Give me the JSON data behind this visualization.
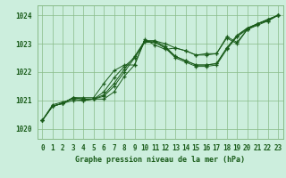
{
  "background_color": "#cceedd",
  "grid_color": "#88bb88",
  "line_color": "#1a5c1a",
  "title": "Graphe pression niveau de la mer (hPa)",
  "ylabel_vals": [
    1020,
    1021,
    1022,
    1023,
    1024
  ],
  "xlim": [
    -0.5,
    23.5
  ],
  "ylim": [
    1019.65,
    1024.35
  ],
  "hours": [
    0,
    1,
    2,
    3,
    4,
    5,
    6,
    7,
    8,
    9,
    10,
    11,
    12,
    13,
    14,
    15,
    16,
    17,
    18,
    19,
    20,
    21,
    22,
    23
  ],
  "line1": [
    1020.3,
    1020.8,
    1020.9,
    1021.0,
    1021.0,
    1021.05,
    1021.05,
    1021.3,
    1021.85,
    1022.25,
    1023.1,
    1023.1,
    1023.0,
    1022.85,
    1022.75,
    1022.6,
    1022.6,
    1022.65,
    1023.2,
    1023.0,
    1023.5,
    1023.7,
    1023.8,
    1024.0
  ],
  "line2": [
    1020.3,
    1020.8,
    1020.9,
    1021.1,
    1021.05,
    1021.05,
    1021.15,
    1021.5,
    1022.0,
    1022.5,
    1023.05,
    1023.05,
    1022.85,
    1022.5,
    1022.35,
    1022.2,
    1022.2,
    1022.25,
    1022.8,
    1023.25,
    1023.55,
    1023.7,
    1023.85,
    1024.0
  ],
  "line3": [
    1020.3,
    1020.8,
    1020.9,
    1021.1,
    1021.05,
    1021.05,
    1021.2,
    1021.6,
    1022.1,
    1022.55,
    1023.1,
    1023.05,
    1022.85,
    1022.55,
    1022.4,
    1022.25,
    1022.25,
    1022.3,
    1022.85,
    1023.3,
    1023.55,
    1023.7,
    1023.85,
    1024.0
  ],
  "line4": [
    1020.3,
    1020.85,
    1020.95,
    1021.05,
    1021.0,
    1021.05,
    1021.3,
    1021.8,
    1022.2,
    1022.5,
    1023.1,
    1023.1,
    1022.9,
    1022.55,
    1022.4,
    1022.25,
    1022.25,
    1022.3,
    1022.85,
    1023.25,
    1023.5,
    1023.65,
    1023.8,
    1024.0
  ],
  "line5": [
    1020.3,
    1020.8,
    1020.9,
    1021.1,
    1021.1,
    1021.1,
    1021.6,
    1022.05,
    1022.25,
    1022.25,
    1023.15,
    1022.95,
    1022.8,
    1022.85,
    1022.75,
    1022.6,
    1022.65,
    1022.65,
    1023.25,
    1023.05,
    1023.5,
    1023.7,
    1023.85,
    1024.0
  ]
}
